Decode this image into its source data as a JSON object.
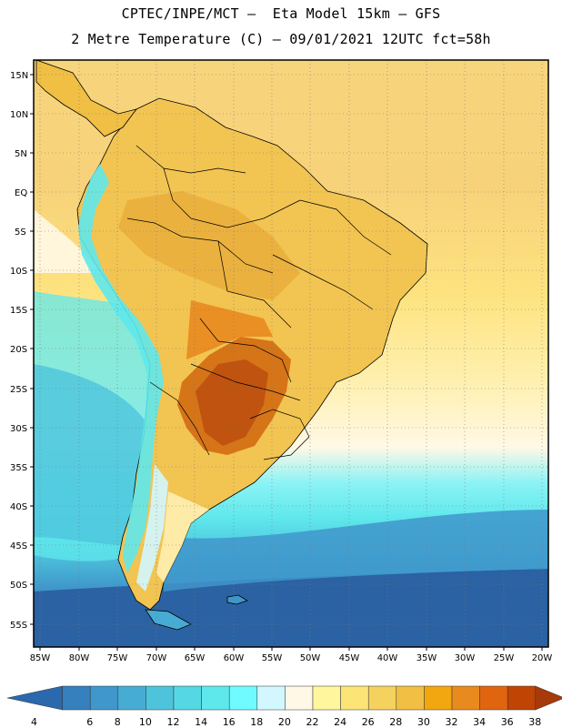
{
  "header": {
    "line1": "CPTEC/INPE/MCT –  Eta Model 15km – GFS",
    "line2": "2 Metre Temperature (C) – 09/01/2021 12UTC fct=58h"
  },
  "map": {
    "latitude_labels": [
      "15N",
      "10N",
      "5N",
      "EQ",
      "5S",
      "10S",
      "15S",
      "20S",
      "25S",
      "30S",
      "35S",
      "40S",
      "45S",
      "50S",
      "55S"
    ],
    "longitude_labels": [
      "85W",
      "80W",
      "75W",
      "70W",
      "65W",
      "60W",
      "55W",
      "50W",
      "45W",
      "40W",
      "35W",
      "30W",
      "25W",
      "20W"
    ]
  },
  "colorbar": {
    "labels": [
      "4",
      "6",
      "8",
      "10",
      "12",
      "14",
      "16",
      "18",
      "20",
      "22",
      "24",
      "26",
      "28",
      "30",
      "32",
      "34",
      "36",
      "38"
    ],
    "colors": [
      "#2a69ae",
      "#3680be",
      "#3f97cb",
      "#47acd4",
      "#4ec4dc",
      "#55d8e4",
      "#5fe8ec",
      "#6ffbff",
      "#d2f7ff",
      "#fff8e6",
      "#fff69e",
      "#fde476",
      "#f5d25e",
      "#f0bf43",
      "#f2a710",
      "#e98a1e",
      "#e1650e",
      "#c04404",
      "#a8390a"
    ]
  },
  "colors": {
    "warm_land": "#f2c452",
    "hot_core": "#c0530f",
    "ocean_north": "#f7d57c",
    "ocean_south": "#2b62a3"
  }
}
